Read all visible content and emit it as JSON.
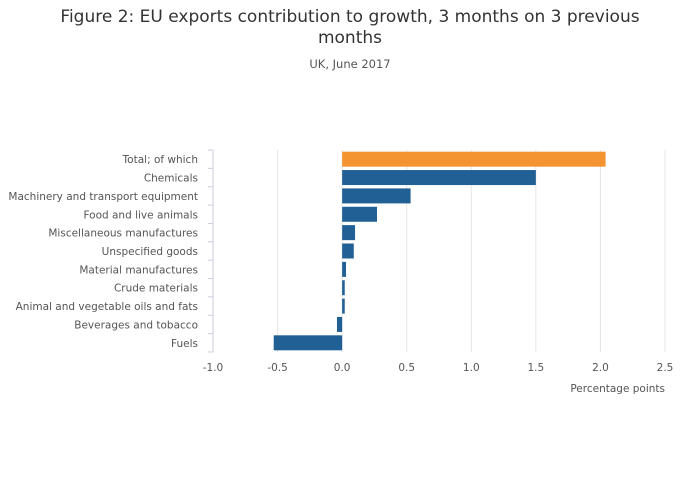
{
  "chart_data": {
    "type": "bar",
    "orientation": "horizontal",
    "title_line1": "Figure 2: EU exports contribution to growth, 3 months on 3 previous",
    "title_line2": "months",
    "subtitle": "UK, June 2017",
    "xlabel": "Percentage points",
    "ylabel": "",
    "xlim": [
      -1.0,
      2.5
    ],
    "xticks": [
      "-1.0",
      "-0.5",
      "0.0",
      "0.5",
      "1.0",
      "1.5",
      "2.0",
      "2.5"
    ],
    "grid": true,
    "categories": [
      "Total; of which",
      "Chemicals",
      "Machinery and transport equipment",
      "Food and live animals",
      "Miscellaneous manufactures",
      "Unspecified goods",
      "Material manufactures",
      "Crude materials",
      "Animal and vegetable oils and fats",
      "Beverages and tobacco",
      "Fuels"
    ],
    "values": [
      2.04,
      1.5,
      0.53,
      0.27,
      0.1,
      0.09,
      0.03,
      0.02,
      0.02,
      -0.04,
      -0.53
    ],
    "colors": {
      "highlight": "#f39431",
      "bar": "#206095",
      "grid": "#e5e5e5"
    }
  }
}
